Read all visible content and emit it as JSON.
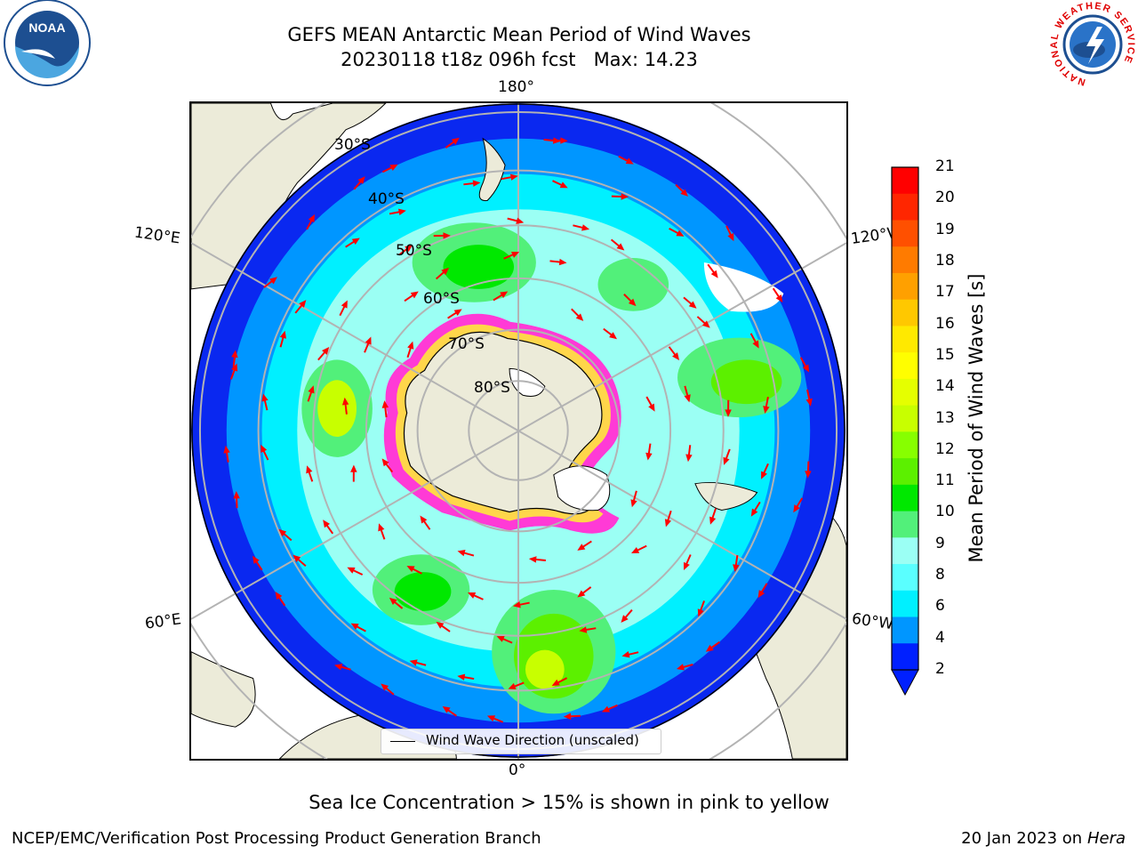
{
  "title": {
    "line1": "GEFS MEAN Antarctic Mean Period of Wind Waves",
    "line2": "20230118 t18z 096h fcst   Max: 14.23"
  },
  "map": {
    "projection": "south-polar-stereographic",
    "lat_labels": [
      "30°S",
      "40°S",
      "50°S",
      "60°S",
      "70°S",
      "80°S"
    ],
    "lon_labels": {
      "top": "180°",
      "bottom": "0°",
      "left_upper": "120°E",
      "left_lower": "60°E",
      "right_upper": "120°W",
      "right_lower": "60°W"
    },
    "legend_label": "Wind Wave Direction (unscaled)",
    "colors": {
      "land": "#ecebd9",
      "coast": "#000000",
      "gridline": "#b3b3b3",
      "arrow": "#ff0000",
      "sea_ice_edge": "#ff3ad6"
    }
  },
  "colorbar": {
    "label": "Mean Period of Wind Waves [s]",
    "ticks": [
      "21",
      "20",
      "19",
      "18",
      "17",
      "16",
      "15",
      "14",
      "13",
      "12",
      "11",
      "10",
      "9",
      "8",
      "6",
      "4",
      "2"
    ],
    "colors_top_to_bottom": [
      "#ff0000",
      "#ff2600",
      "#ff5000",
      "#ff7b00",
      "#ffa000",
      "#ffc800",
      "#ffe900",
      "#fffe00",
      "#e5ff00",
      "#c8ff00",
      "#87ff00",
      "#5cf000",
      "#00e800",
      "#52f07a",
      "#9bfff4",
      "#5affff",
      "#00f0ff",
      "#0096ff",
      "#0020ff"
    ],
    "extend": "min"
  },
  "logos": {
    "left": "NOAA",
    "right_ring": "NATIONAL WEATHER SERVICE"
  },
  "footnote": "Sea Ice Concentration > 15% is shown in pink to yellow",
  "credit": "NCEP/EMC/Verification Post Processing Product Generation Branch",
  "date": {
    "prefix": "20 Jan 2023 on ",
    "host": "Hera"
  }
}
